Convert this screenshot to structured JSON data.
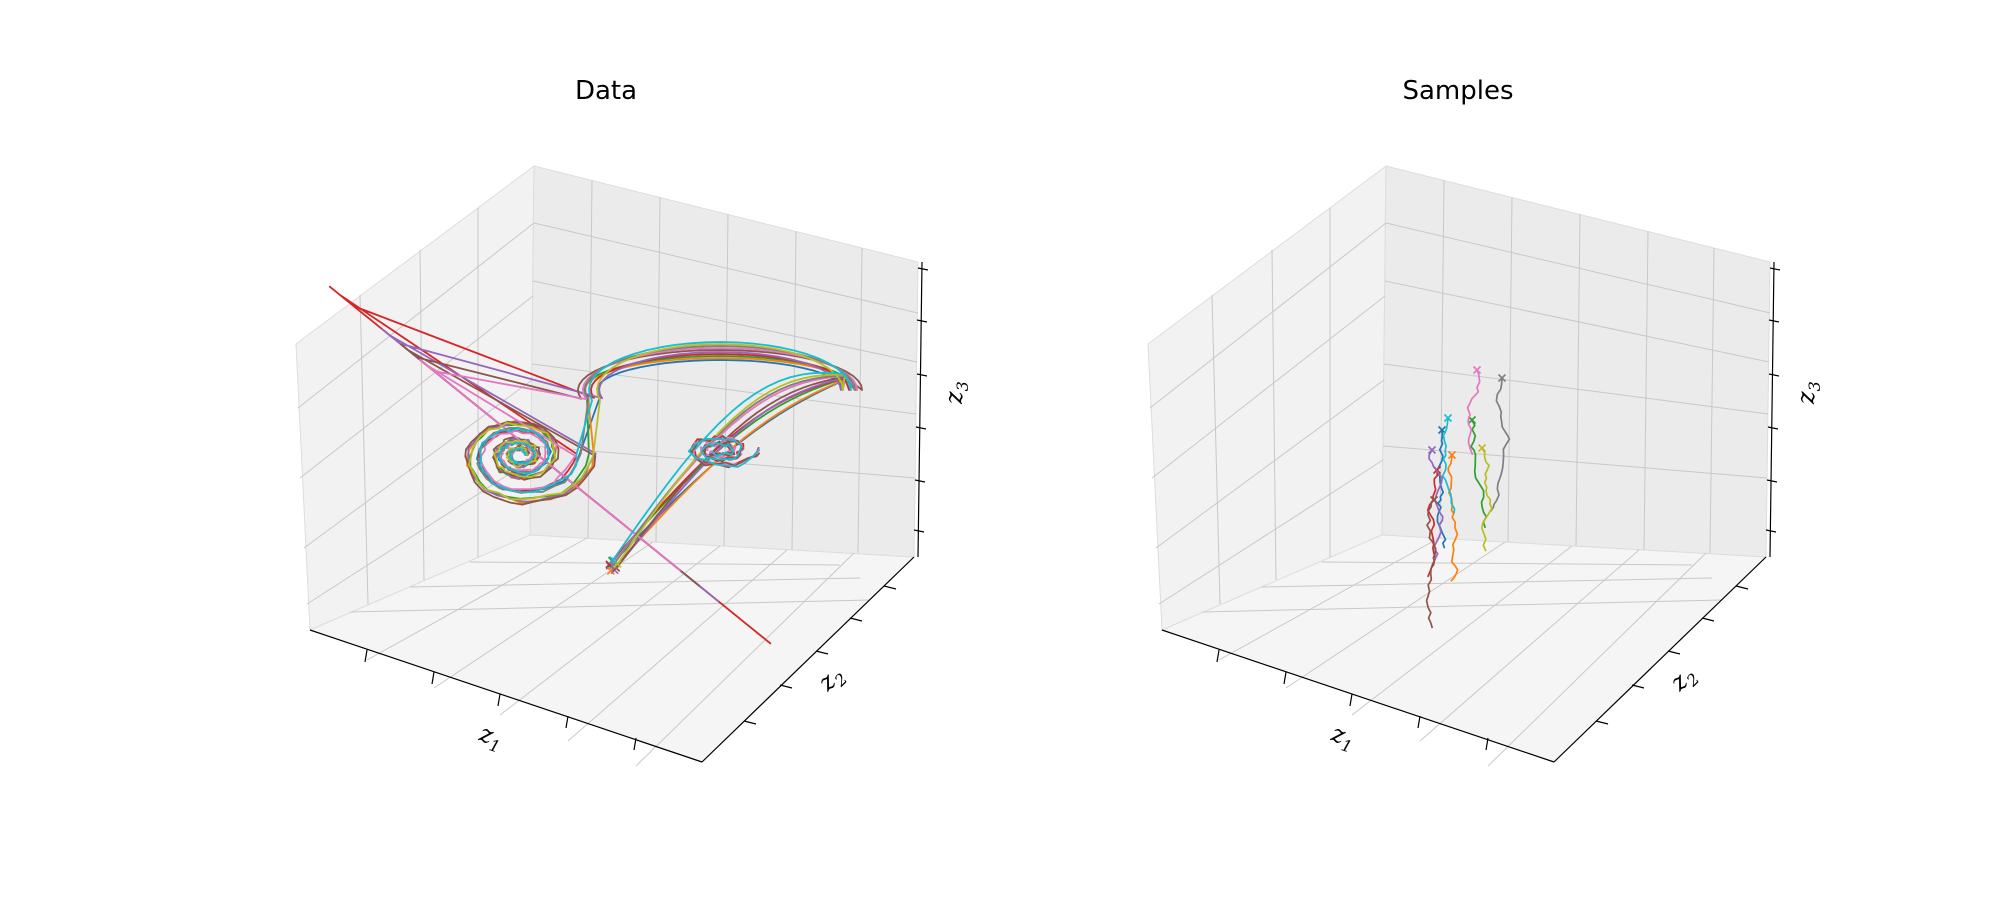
{
  "chart_data": [
    {
      "type": "line3d",
      "title": "Data",
      "xlabel": "z_1",
      "ylabel": "z_2",
      "zlabel": "z_3",
      "grid": true,
      "tick_labels_shown": false,
      "markers": "x marks trajectory start",
      "palette": [
        "#1f77b4",
        "#ff7f0e",
        "#2ca02c",
        "#d62728",
        "#9467bd",
        "#8c564b",
        "#e377c2",
        "#7f7f7f",
        "#bcbd22",
        "#17becf"
      ],
      "description_of_series": "Ten Lorenz-like trajectories spiralling between two lobes"
    },
    {
      "type": "line3d",
      "title": "Samples",
      "xlabel": "z_1",
      "ylabel": "z_2",
      "zlabel": "z_3",
      "grid": true,
      "tick_labels_shown": false,
      "markers": "x marks trajectory start",
      "palette": [
        "#1f77b4",
        "#ff7f0e",
        "#2ca02c",
        "#d62728",
        "#9467bd",
        "#8c564b",
        "#e377c2",
        "#7f7f7f",
        "#bcbd22",
        "#17becf"
      ]
    }
  ]
}
